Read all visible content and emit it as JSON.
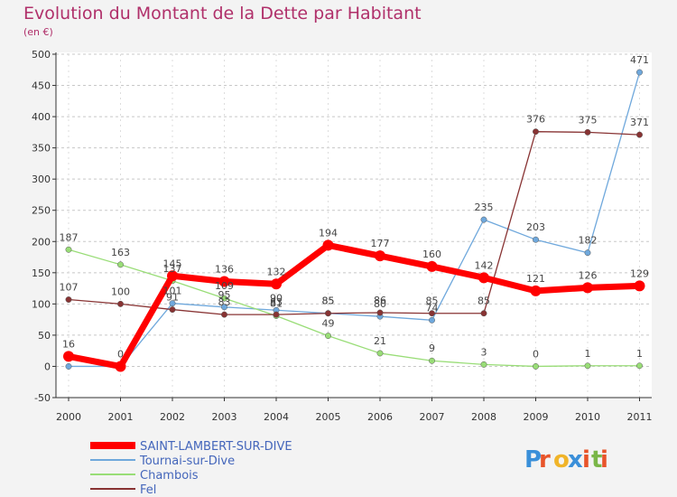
{
  "chart_data": {
    "type": "line",
    "title": "Evolution du Montant de la Dette par Habitant",
    "subtitle": "(en €)",
    "x": [
      "2000",
      "2001",
      "2002",
      "2003",
      "2004",
      "2005",
      "2006",
      "2007",
      "2008",
      "2009",
      "2010",
      "2011"
    ],
    "ylim": [
      -50,
      500
    ],
    "yticks": [
      -50,
      0,
      50,
      100,
      150,
      200,
      250,
      300,
      350,
      400,
      450,
      500
    ],
    "grid": "horizontal-dashed",
    "legend": "bottom-left",
    "series": [
      {
        "name": "SAINT-LAMBERT-SUR-DIVE",
        "color": "#ff0000",
        "values": [
          16,
          0,
          145,
          136,
          132,
          194,
          177,
          160,
          142,
          121,
          126,
          129
        ],
        "labels": [
          "16",
          "0",
          "145",
          "136",
          "132",
          "194",
          "177",
          "160",
          "142",
          "121",
          "126",
          "129"
        ]
      },
      {
        "name": "Tournai-sur-Dive",
        "color": "#6fa8dc",
        "values": [
          0,
          0,
          101,
          95,
          90,
          85,
          80,
          74,
          235,
          203,
          182,
          471
        ],
        "labels": [
          "",
          "",
          "101",
          "95",
          "90",
          "85",
          "80",
          "74",
          "235",
          "203",
          "182",
          "471"
        ]
      },
      {
        "name": "Chambois",
        "color": "#99dd77",
        "values": [
          187,
          163,
          137,
          109,
          81,
          49,
          21,
          9,
          3,
          0,
          1,
          1
        ],
        "labels": [
          "187",
          "163",
          "137",
          "109",
          "81",
          "49",
          "21",
          "9",
          "3",
          "0",
          "1",
          "1"
        ]
      },
      {
        "name": "Fel",
        "color": "#883333",
        "values": [
          107,
          100,
          91,
          83,
          83,
          85,
          86,
          85,
          85,
          376,
          375,
          371
        ],
        "labels": [
          "107",
          "100",
          "91",
          "83",
          "83",
          "85",
          "86",
          "85",
          "85",
          "376",
          "375",
          "371"
        ]
      }
    ]
  },
  "logo": {
    "text": "Proxiti",
    "letters": [
      "P",
      "r",
      "o",
      "x",
      "i",
      "t",
      "i"
    ],
    "colors": [
      "#3a8fd9",
      "#e8542a",
      "#f0b429",
      "#3a8fd9",
      "#e8542a",
      "#7ab648",
      "#e8542a"
    ]
  }
}
